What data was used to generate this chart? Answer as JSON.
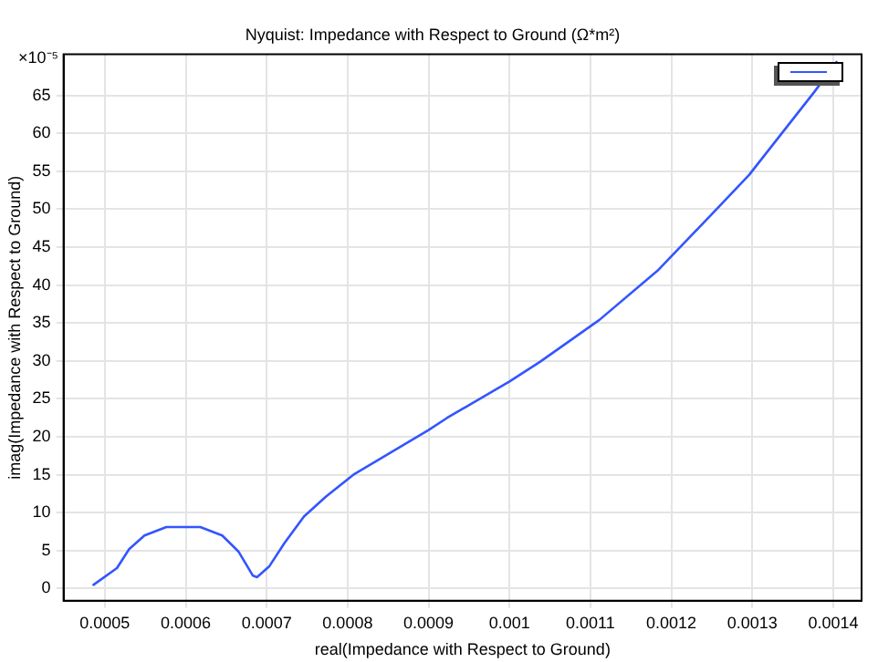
{
  "chart_data": {
    "type": "line",
    "title": "Nyquist: Impedance with Respect to Ground (Ω*m²)",
    "xlabel": "real(Impedance with Respect to Ground)",
    "ylabel": "imag(Impedance with Respect to Ground)",
    "annotations": [
      "×10⁻⁵"
    ],
    "series": [
      {
        "color": "#3355ff",
        "x": [
          0.000486,
          0.000515,
          0.00053,
          0.000549,
          0.000576,
          0.000618,
          0.000645,
          0.000665,
          0.000683,
          0.000688,
          0.000703,
          0.000722,
          0.000746,
          0.000773,
          0.000807,
          0.0009,
          0.000923,
          0.001,
          0.001038,
          0.001111,
          0.001184,
          0.001254,
          0.001296,
          0.001377,
          0.001404
        ],
        "values": [
          0.5,
          2.7,
          5.2,
          7,
          8.1,
          8.1,
          7,
          4.9,
          1.7,
          1.5,
          2.9,
          6,
          9.5,
          12.1,
          15,
          20.9,
          22.5,
          27.3,
          29.9,
          35.4,
          42,
          49.8,
          54.5,
          65.5,
          69.4
        ]
      }
    ],
    "xlim": [
      0.000449,
      0.001435
    ],
    "ylim": [
      -1.6,
      70.4
    ],
    "xticks": [
      0.0005,
      0.0006,
      0.0007,
      0.0008,
      0.0009,
      0.001,
      0.0011,
      0.0012,
      0.0013,
      0.0014
    ],
    "yticks": [
      0,
      5,
      10,
      15,
      20,
      25,
      30,
      35,
      40,
      45,
      50,
      55,
      60,
      65
    ],
    "grid": true,
    "marker": "none",
    "line_style": "solid"
  }
}
